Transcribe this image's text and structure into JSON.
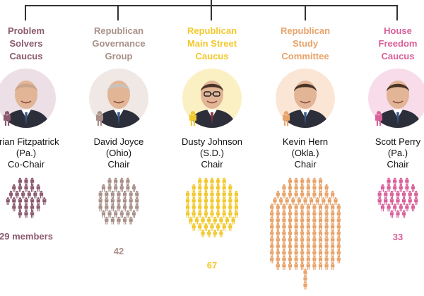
{
  "caucuses": [
    {
      "name_lines": [
        "Problem",
        "Solvers",
        "Caucus"
      ],
      "leader_lines": [
        "Brian Fitzpatrick",
        "(Pa.)",
        "Co-Chair"
      ],
      "member_count": 29,
      "count_label": "29 members",
      "color": "#8b5a6e",
      "light_color": "#ecdfe5",
      "portrait": "bald-man-portrait"
    },
    {
      "name_lines": [
        "Republican",
        "Governance",
        "Group"
      ],
      "leader_lines": [
        "David Joyce",
        "(Ohio)",
        "Chair"
      ],
      "member_count": 42,
      "count_label": "42",
      "color": "#a89088",
      "light_color": "#efe8e5",
      "portrait": "gray-haired-man-portrait"
    },
    {
      "name_lines": [
        "Republican",
        "Main Street",
        "Caucus"
      ],
      "leader_lines": [
        "Dusty Johnson",
        "(S.D.)",
        "Chair"
      ],
      "member_count": 67,
      "count_label": "67",
      "color": "#f2c82c",
      "light_color": "#fbf0c3",
      "portrait": "man-with-glasses-portrait"
    },
    {
      "name_lines": [
        "Republican",
        "Study",
        "Committee"
      ],
      "leader_lines": [
        "Kevin Hern",
        "(Okla.)",
        "Chair"
      ],
      "member_count": 156,
      "count_label": "",
      "color": "#e8a36a",
      "light_color": "#fbe6d6",
      "portrait": "smiling-man-portrait"
    },
    {
      "name_lines": [
        "House",
        "Freedom",
        "Caucus"
      ],
      "leader_lines": [
        "Scott Perry",
        "(Pa.)",
        "Chair"
      ],
      "member_count": 33,
      "count_label": "33",
      "color": "#d9609a",
      "light_color": "#f8dcea",
      "portrait": "dark-haired-man-portrait"
    }
  ]
}
